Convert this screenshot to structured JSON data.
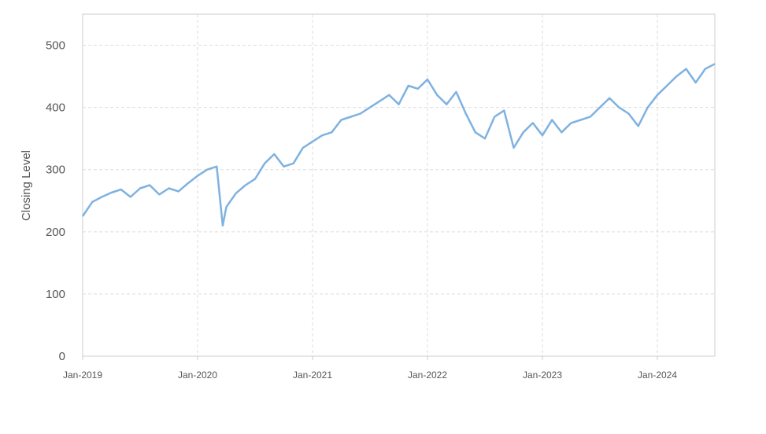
{
  "chart_data": {
    "type": "line",
    "title": "",
    "xlabel": "",
    "ylabel": "Closing Level",
    "ylim": [
      0,
      550
    ],
    "yticks": [
      0,
      100,
      200,
      300,
      400,
      500
    ],
    "xlim": [
      "2019-01",
      "2024-07"
    ],
    "xticks": [
      {
        "label": "Jan-2019",
        "date": "2019-01"
      },
      {
        "label": "Jan-2020",
        "date": "2020-01"
      },
      {
        "label": "Jan-2021",
        "date": "2021-01"
      },
      {
        "label": "Jan-2022",
        "date": "2022-01"
      },
      {
        "label": "Jan-2023",
        "date": "2023-01"
      },
      {
        "label": "Jan-2024",
        "date": "2024-01"
      }
    ],
    "grid": true,
    "colors": {
      "line": "#7fb2e0",
      "grid": "#dddddd",
      "frame": "#cccccc",
      "text": "#555555"
    },
    "series": [
      {
        "points": [
          [
            "2019-01",
            225
          ],
          [
            "2019-02",
            248
          ],
          [
            "2019-03",
            256
          ],
          [
            "2019-04",
            263
          ],
          [
            "2019-05",
            268
          ],
          [
            "2019-06",
            256
          ],
          [
            "2019-07",
            270
          ],
          [
            "2019-08",
            275
          ],
          [
            "2019-09",
            260
          ],
          [
            "2019-10",
            270
          ],
          [
            "2019-11",
            265
          ],
          [
            "2019-12",
            278
          ],
          [
            "2020-01",
            290
          ],
          [
            "2020-02",
            300
          ],
          [
            "2020-03",
            305
          ],
          [
            "2020-03-20",
            210
          ],
          [
            "2020-04",
            240
          ],
          [
            "2020-05",
            262
          ],
          [
            "2020-06",
            275
          ],
          [
            "2020-07",
            285
          ],
          [
            "2020-08",
            310
          ],
          [
            "2020-09",
            325
          ],
          [
            "2020-10",
            305
          ],
          [
            "2020-11",
            310
          ],
          [
            "2020-12",
            335
          ],
          [
            "2021-01",
            345
          ],
          [
            "2021-02",
            355
          ],
          [
            "2021-03",
            360
          ],
          [
            "2021-04",
            380
          ],
          [
            "2021-05",
            385
          ],
          [
            "2021-06",
            390
          ],
          [
            "2021-07",
            400
          ],
          [
            "2021-08",
            410
          ],
          [
            "2021-09",
            420
          ],
          [
            "2021-10",
            405
          ],
          [
            "2021-11",
            435
          ],
          [
            "2021-12",
            430
          ],
          [
            "2022-01",
            445
          ],
          [
            "2022-02",
            420
          ],
          [
            "2022-03",
            405
          ],
          [
            "2022-04",
            425
          ],
          [
            "2022-05",
            390
          ],
          [
            "2022-06",
            360
          ],
          [
            "2022-07",
            350
          ],
          [
            "2022-08",
            385
          ],
          [
            "2022-09",
            395
          ],
          [
            "2022-10",
            335
          ],
          [
            "2022-11",
            360
          ],
          [
            "2022-12",
            375
          ],
          [
            "2023-01",
            355
          ],
          [
            "2023-02",
            380
          ],
          [
            "2023-03",
            360
          ],
          [
            "2023-04",
            375
          ],
          [
            "2023-05",
            380
          ],
          [
            "2023-06",
            385
          ],
          [
            "2023-07",
            400
          ],
          [
            "2023-08",
            415
          ],
          [
            "2023-09",
            400
          ],
          [
            "2023-10",
            390
          ],
          [
            "2023-11",
            370
          ],
          [
            "2023-12",
            400
          ],
          [
            "2024-01",
            420
          ],
          [
            "2024-02",
            435
          ],
          [
            "2024-03",
            450
          ],
          [
            "2024-04",
            462
          ],
          [
            "2024-05",
            440
          ],
          [
            "2024-06",
            462
          ],
          [
            "2024-07",
            470
          ]
        ]
      }
    ]
  }
}
